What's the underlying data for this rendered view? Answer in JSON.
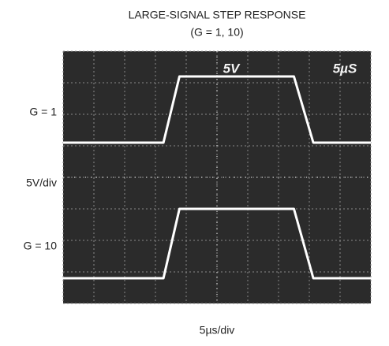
{
  "chart_data": {
    "type": "line",
    "title": "LARGE-SIGNAL STEP RESPONSE",
    "subtitle": "(G = 1, 10)",
    "y_label": "5V/div",
    "x_label": "5µs/div",
    "annotations": [
      "5V",
      "5µS"
    ],
    "x": [
      0,
      3.26,
      3.78,
      7.5,
      8.13,
      10
    ],
    "xlim": [
      0,
      10
    ],
    "ylim": [
      -4,
      4
    ],
    "grid": true,
    "series": [
      {
        "name": "G = 1",
        "color": "#ffffff",
        "values": [
          1.1,
          1.1,
          3.2,
          3.2,
          1.1,
          1.1
        ]
      },
      {
        "name": "G = 10",
        "color": "#ffffff",
        "values": [
          -3.2,
          -3.2,
          -1.0,
          -1.0,
          -3.2,
          -3.2
        ]
      }
    ]
  }
}
